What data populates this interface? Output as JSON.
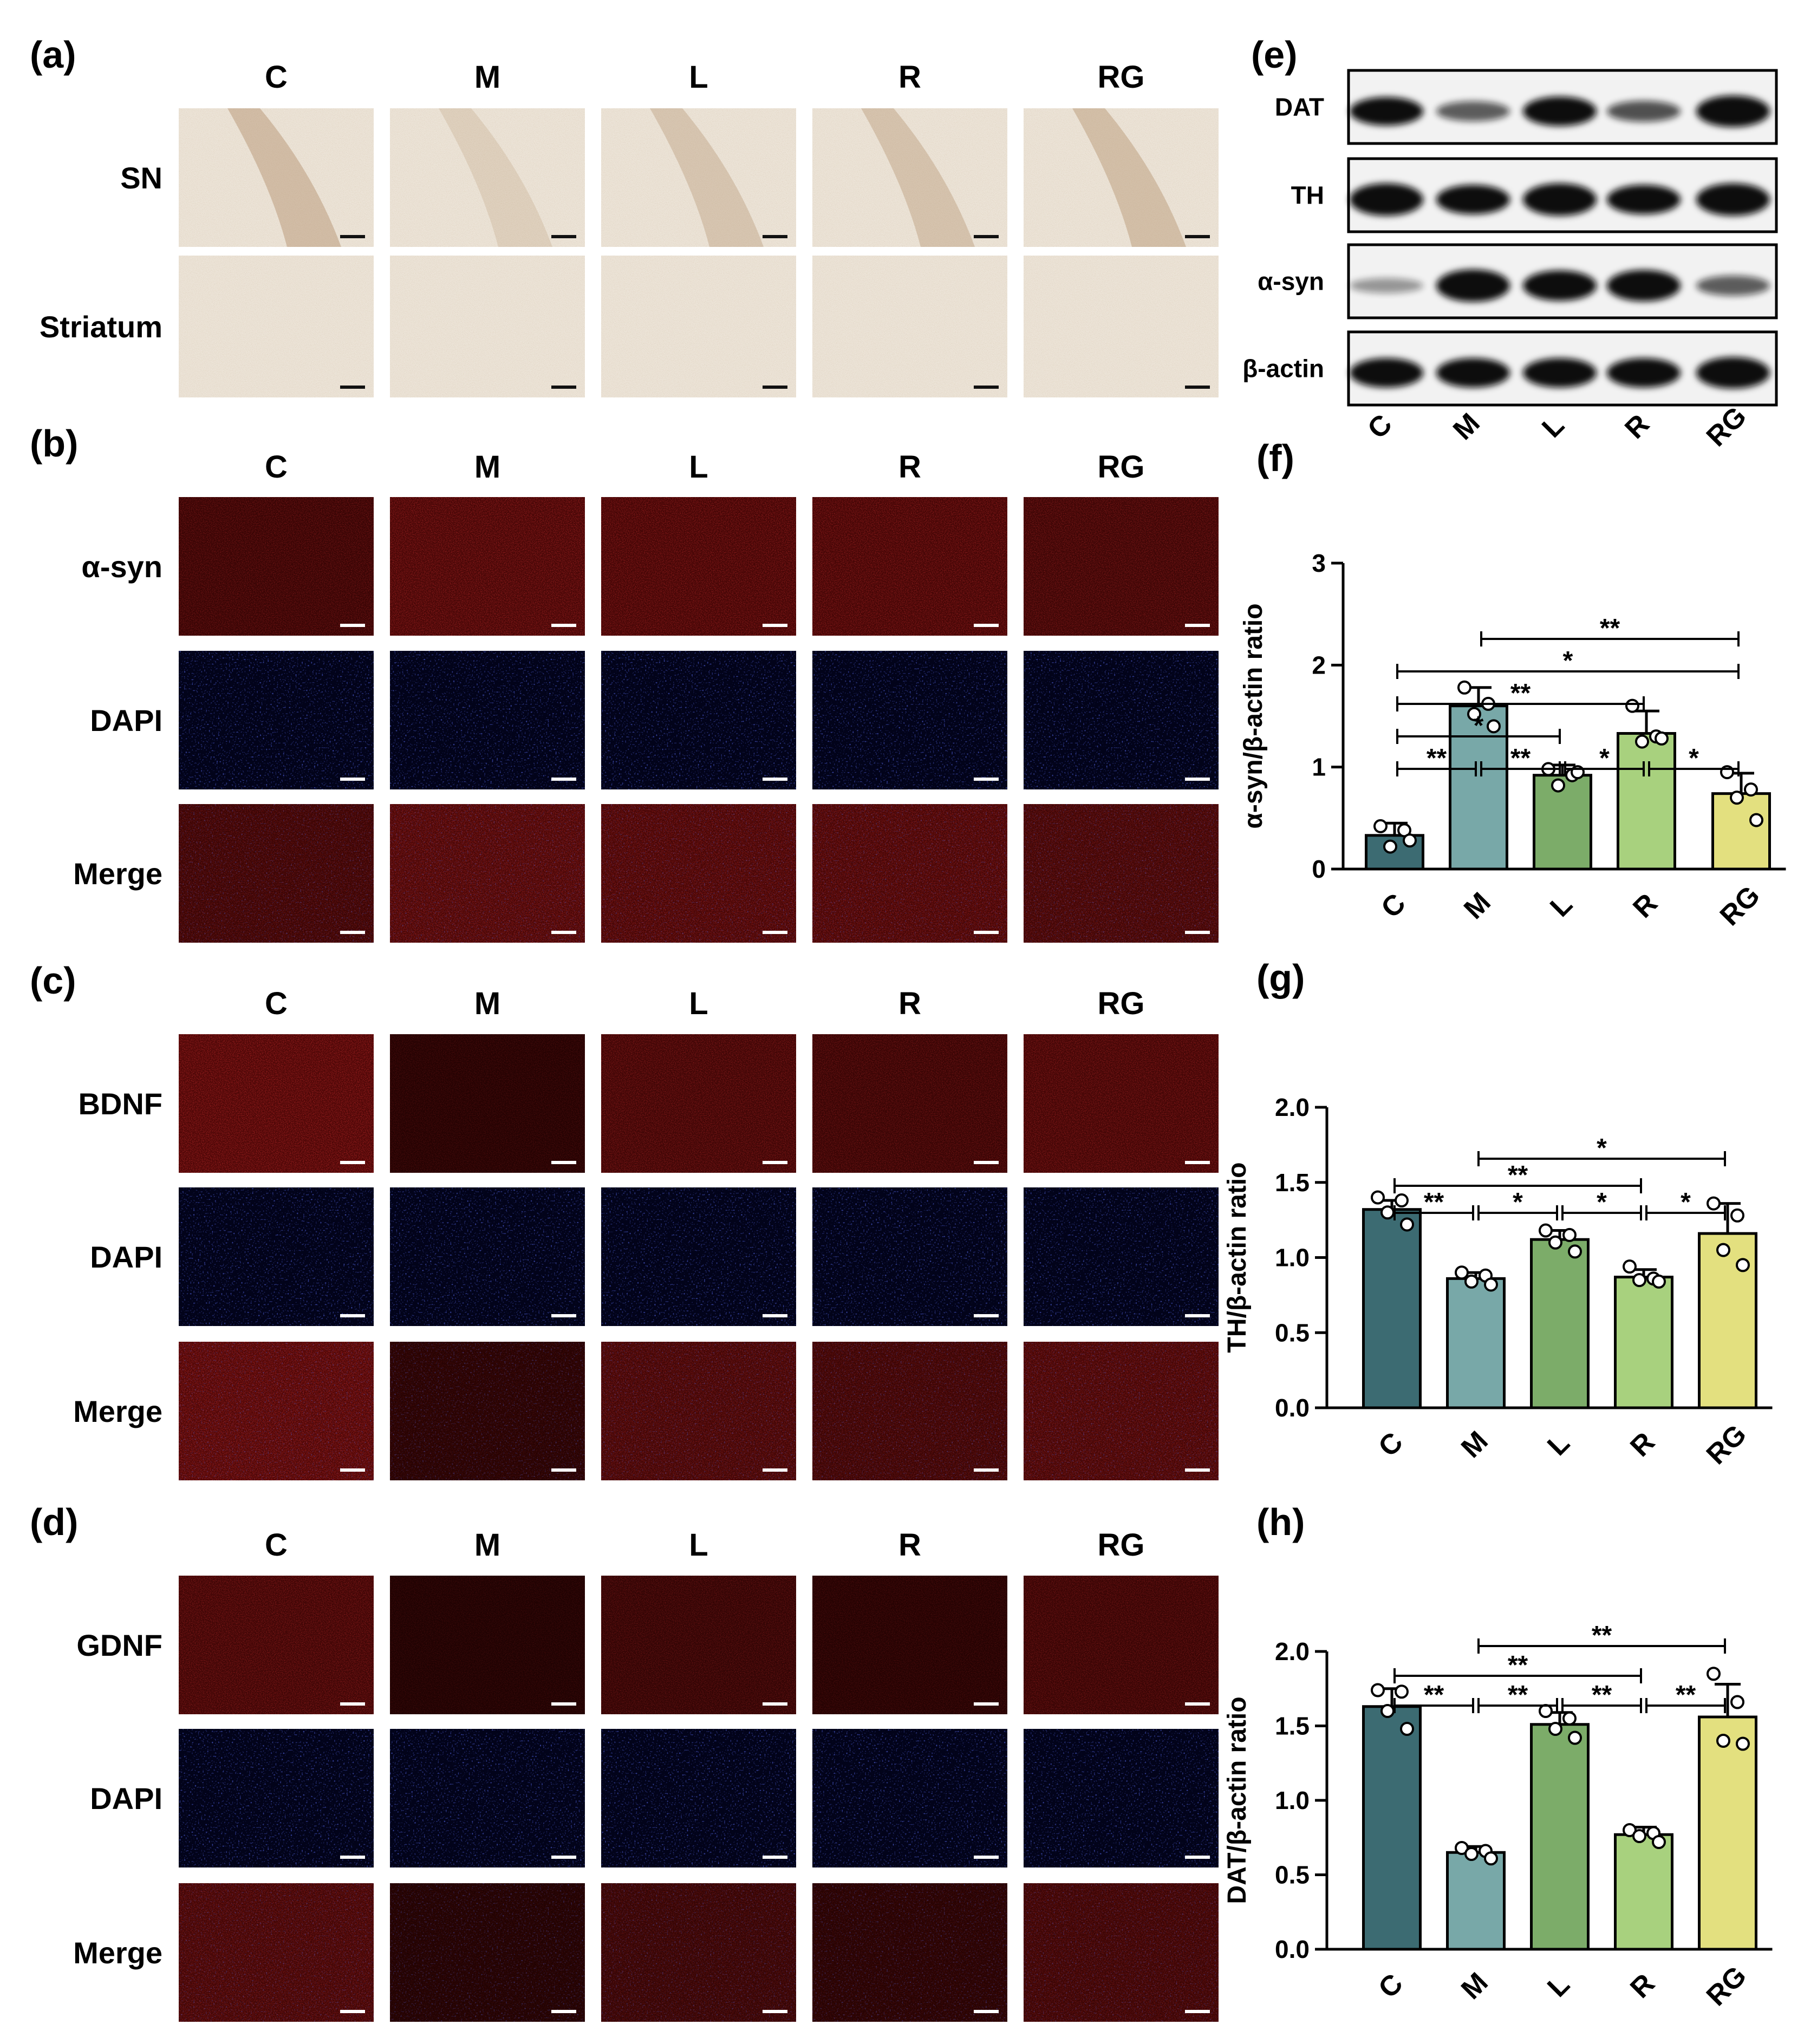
{
  "micro_panels": [
    {
      "label": "(a)",
      "columns": [
        "C",
        "M",
        "L",
        "R",
        "RG"
      ],
      "rows": [
        "SN",
        "Striatum"
      ],
      "stain": "ihc"
    },
    {
      "label": "(b)",
      "columns": [
        "C",
        "M",
        "L",
        "R",
        "RG"
      ],
      "rows": [
        "α-syn",
        "DAPI",
        "Merge"
      ],
      "stain": "fluor"
    },
    {
      "label": "(c)",
      "columns": [
        "C",
        "M",
        "L",
        "R",
        "RG"
      ],
      "rows": [
        "BDNF",
        "DAPI",
        "Merge"
      ],
      "stain": "fluor"
    },
    {
      "label": "(d)",
      "columns": [
        "C",
        "M",
        "L",
        "R",
        "RG"
      ],
      "rows": [
        "GDNF",
        "DAPI",
        "Merge"
      ],
      "stain": "fluor"
    }
  ],
  "western_blot": {
    "label": "(e)",
    "bands": [
      "DAT",
      "TH",
      "α-syn",
      "β-actin"
    ],
    "lanes": [
      "C",
      "M",
      "L",
      "R",
      "RG"
    ],
    "intensity": {
      "DAT": [
        0.8,
        0.4,
        0.85,
        0.45,
        0.95
      ],
      "TH": [
        1.0,
        0.85,
        1.0,
        0.85,
        1.0
      ],
      "α-syn": [
        0.15,
        1.0,
        0.9,
        0.95,
        0.4
      ],
      "β-actin": [
        0.85,
        0.85,
        0.85,
        0.85,
        0.95
      ]
    }
  },
  "colors": {
    "C": "#3c6b72",
    "M": "#78a8a8",
    "L": "#7cac69",
    "R": "#a8d17e",
    "RG": "#e3e07f"
  },
  "chart_data": [
    {
      "label": "(f)",
      "type": "bar",
      "categories": [
        "C",
        "M",
        "L",
        "R",
        "RG"
      ],
      "values": [
        0.33,
        1.6,
        0.92,
        1.33,
        0.74
      ],
      "errors": [
        0.12,
        0.18,
        0.1,
        0.22,
        0.2
      ],
      "points": [
        [
          0.42,
          0.38,
          0.22,
          0.28
        ],
        [
          1.78,
          1.62,
          1.52,
          1.4
        ],
        [
          0.98,
          0.92,
          0.82,
          0.95
        ],
        [
          1.6,
          1.3,
          1.25,
          1.28
        ],
        [
          0.95,
          0.78,
          0.7,
          0.48
        ]
      ],
      "ylabel": "α-syn/β-actin ratio",
      "ylim": [
        0,
        3
      ],
      "yticks": [
        "0",
        "1",
        "2",
        "3"
      ],
      "significance": [
        {
          "from": 0,
          "to": 1,
          "label": "**",
          "level": 0
        },
        {
          "from": 1,
          "to": 2,
          "label": "**",
          "level": 0
        },
        {
          "from": 2,
          "to": 3,
          "label": "*",
          "level": 0
        },
        {
          "from": 3,
          "to": 4,
          "label": "*",
          "level": 0
        },
        {
          "from": 0,
          "to": 2,
          "label": "*",
          "level": 1
        },
        {
          "from": 0,
          "to": 3,
          "label": "**",
          "level": 2
        },
        {
          "from": 0,
          "to": 4,
          "label": "*",
          "level": 3
        },
        {
          "from": 1,
          "to": 4,
          "label": "**",
          "level": 4
        }
      ]
    },
    {
      "label": "(g)",
      "type": "bar",
      "categories": [
        "C",
        "M",
        "L",
        "R",
        "RG"
      ],
      "values": [
        1.32,
        0.86,
        1.12,
        0.87,
        1.16
      ],
      "errors": [
        0.06,
        0.04,
        0.06,
        0.05,
        0.2
      ],
      "points": [
        [
          1.4,
          1.38,
          1.3,
          1.22
        ],
        [
          0.9,
          0.88,
          0.84,
          0.82
        ],
        [
          1.18,
          1.15,
          1.1,
          1.04
        ],
        [
          0.94,
          0.86,
          0.85,
          0.84
        ],
        [
          1.36,
          1.28,
          1.05,
          0.95
        ]
      ],
      "ylabel": "TH/β-actin ratio",
      "ylim": [
        0,
        2
      ],
      "yticks": [
        "0.0",
        "0.5",
        "1.0",
        "1.5",
        "2.0"
      ],
      "significance": [
        {
          "from": 0,
          "to": 1,
          "label": "**",
          "level": 0
        },
        {
          "from": 1,
          "to": 2,
          "label": "*",
          "level": 0
        },
        {
          "from": 2,
          "to": 3,
          "label": "*",
          "level": 0
        },
        {
          "from": 3,
          "to": 4,
          "label": "*",
          "level": 0
        },
        {
          "from": 0,
          "to": 3,
          "label": "**",
          "level": 1
        },
        {
          "from": 1,
          "to": 4,
          "label": "*",
          "level": 2
        }
      ]
    },
    {
      "label": "(h)",
      "type": "bar",
      "categories": [
        "C",
        "M",
        "L",
        "R",
        "RG"
      ],
      "values": [
        1.63,
        0.65,
        1.51,
        0.77,
        1.56
      ],
      "errors": [
        0.12,
        0.04,
        0.08,
        0.05,
        0.22
      ],
      "points": [
        [
          1.74,
          1.73,
          1.6,
          1.48
        ],
        [
          0.68,
          0.66,
          0.64,
          0.61
        ],
        [
          1.6,
          1.55,
          1.48,
          1.42
        ],
        [
          0.8,
          0.78,
          0.76,
          0.72
        ],
        [
          1.85,
          1.66,
          1.4,
          1.38
        ]
      ],
      "ylabel": "DAT/β-actin ratio",
      "ylim": [
        0,
        2
      ],
      "yticks": [
        "0.0",
        "0.5",
        "1.0",
        "1.5",
        "2.0"
      ],
      "significance": [
        {
          "from": 0,
          "to": 1,
          "label": "**",
          "level": 0
        },
        {
          "from": 1,
          "to": 2,
          "label": "**",
          "level": 0
        },
        {
          "from": 2,
          "to": 3,
          "label": "**",
          "level": 0
        },
        {
          "from": 3,
          "to": 4,
          "label": "**",
          "level": 0
        },
        {
          "from": 0,
          "to": 3,
          "label": "**",
          "level": 1
        },
        {
          "from": 1,
          "to": 4,
          "label": "**",
          "level": 2
        }
      ]
    }
  ]
}
